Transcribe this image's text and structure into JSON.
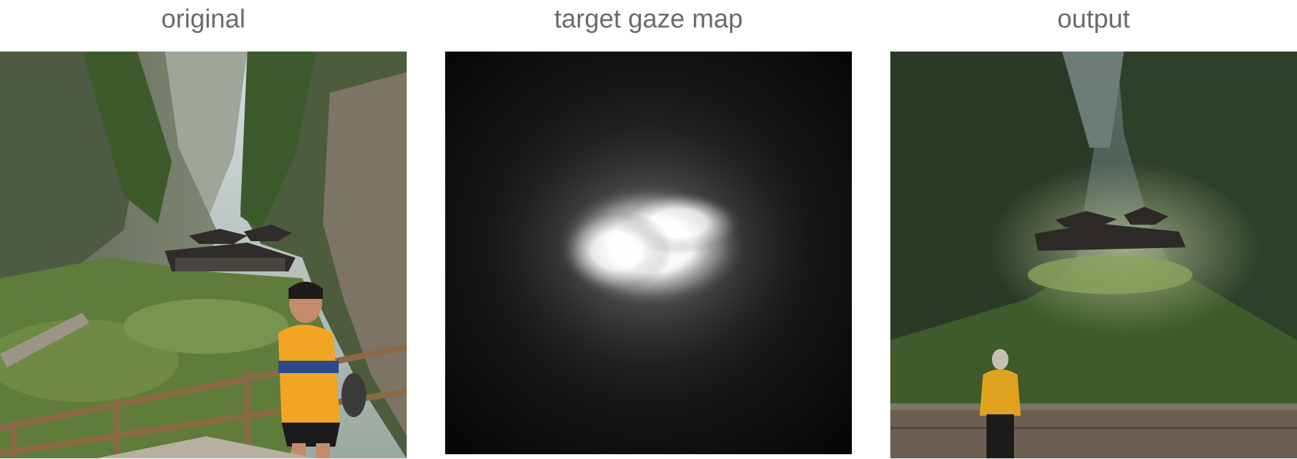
{
  "panels": [
    {
      "title": "original"
    },
    {
      "title": "target gaze map"
    },
    {
      "title": "output"
    }
  ]
}
